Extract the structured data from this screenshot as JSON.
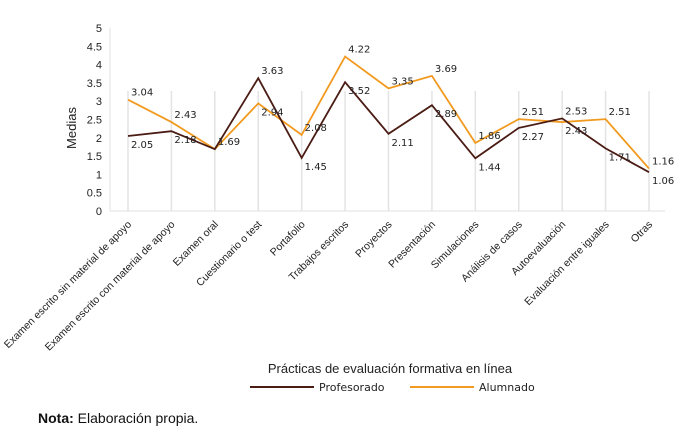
{
  "chart_data": {
    "type": "line",
    "title": "",
    "xlabel": "Prácticas de evaluación formativa en línea",
    "ylabel": "Medias",
    "ylim": [
      0,
      5
    ],
    "yticks": [
      "0",
      "0.5",
      "1",
      "1.5",
      "2",
      "2.5",
      "3",
      "3.5",
      "4",
      "4.5",
      "5"
    ],
    "grid": "vertical",
    "legend_position": "bottom-center",
    "categories": [
      "Examen escrito sin material de apoyo",
      "Examen escrito con material de apoyo",
      "Examen oral",
      "Cuestionario o test",
      "Portafolio",
      "Trabajos escritos",
      "Proyectos",
      "Presentación",
      "Simulaciones",
      "Análisis de casos",
      "Autoevaluación",
      "Evaluación entre iguales",
      "Otras"
    ],
    "series": [
      {
        "name": "Profesorado",
        "color": "#4a1c14",
        "values": [
          2.05,
          2.18,
          1.69,
          3.63,
          1.45,
          3.52,
          2.11,
          2.89,
          1.44,
          2.27,
          2.53,
          1.71,
          1.06
        ],
        "labels": [
          "2.05",
          "2.18",
          "1.69",
          "3.63",
          "1.45",
          "3.52",
          "2.11",
          "2.89",
          "1.44",
          "2.27",
          "2.53",
          "1.71",
          "1.06"
        ]
      },
      {
        "name": "Alumnado",
        "color": "#f29a1f",
        "values": [
          3.04,
          2.43,
          1.69,
          2.94,
          2.08,
          4.22,
          3.35,
          3.69,
          1.86,
          2.51,
          2.43,
          2.51,
          1.16
        ],
        "labels": [
          "3.04",
          "2.43",
          "",
          "2.94",
          "2.08",
          "4.22",
          "3.35",
          "3.69",
          "1.86",
          "2.51",
          "2.43",
          "2.51",
          "1.16"
        ]
      }
    ]
  },
  "note": {
    "label": "Nota:",
    "text": " Elaboración propia."
  }
}
